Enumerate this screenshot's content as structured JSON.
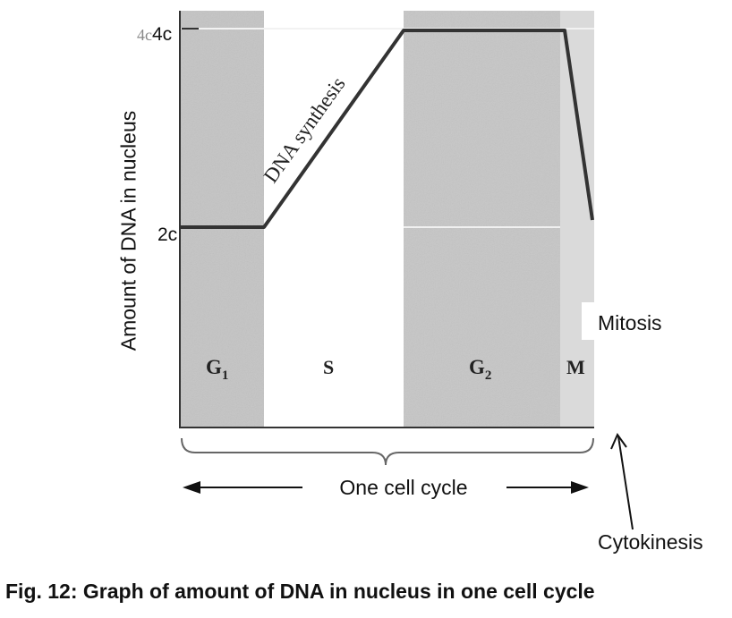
{
  "diagram": {
    "y_axis_label": "Amount of DNA in nucleus",
    "y_tick_high": "4c",
    "y_tick_low": "2c",
    "y_tick_ghost": "4c",
    "phases": {
      "g1": {
        "letter": "G",
        "sub": "1"
      },
      "s": {
        "letter": "S"
      },
      "g2": {
        "letter": "G",
        "sub": "2"
      },
      "m": {
        "letter": "M"
      }
    },
    "slope_label": "DNA synthesis",
    "mitosis_label": "Mitosis",
    "cycle_label": "One cell cycle",
    "cytokinesis_label": "Cytokinesis",
    "caption": "Fig. 12: Graph of amount of DNA in nucleus in one cell cycle",
    "colors": {
      "g1_band": "#c4c4c4",
      "g2_band": "#c6c6c6",
      "m_band": "#dadada",
      "line": "#333333"
    }
  }
}
